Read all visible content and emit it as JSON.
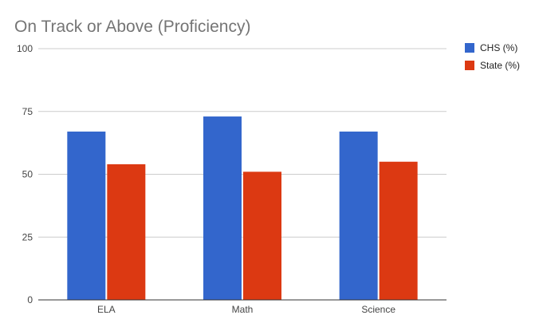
{
  "chart_data": {
    "type": "bar",
    "title": "On Track or Above (Proficiency)",
    "categories": [
      "ELA",
      "Math",
      "Science"
    ],
    "series": [
      {
        "name": "CHS (%)",
        "values": [
          67,
          73,
          67
        ],
        "color": "#3366cc"
      },
      {
        "name": "State (%)",
        "values": [
          54,
          51,
          55
        ],
        "color": "#dc3912"
      }
    ],
    "ylim": [
      0,
      100
    ],
    "yticks": [
      "0",
      "25",
      "50",
      "75",
      "100"
    ],
    "grid": true,
    "legend_position": "right"
  }
}
